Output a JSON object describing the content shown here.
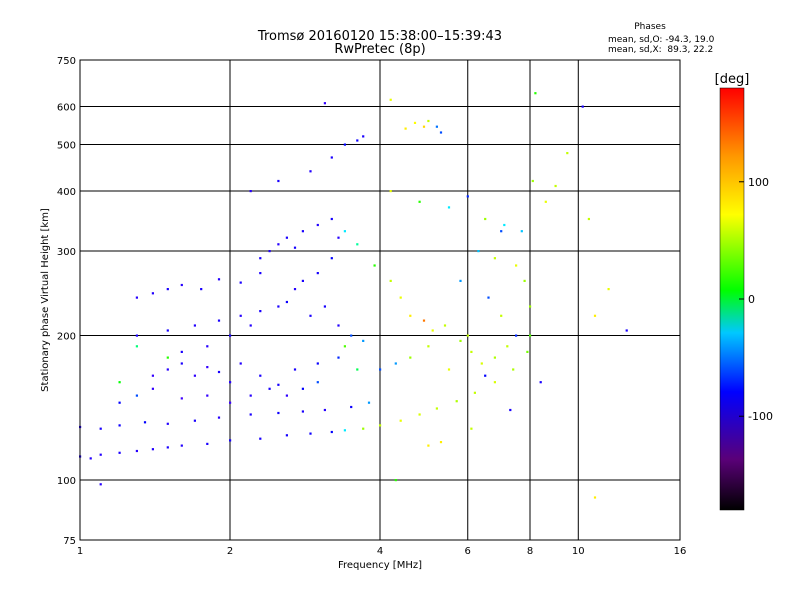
{
  "chart_data": {
    "type": "scatter",
    "title": "Tromsø 20160120 15:38:00–15:39:43",
    "subtitle": "RwPretec (8p)",
    "xlabel": "Frequency [MHz]",
    "ylabel": "Stationary phase Virtual Height [km]",
    "x_scale": "log",
    "y_scale": "log",
    "xlim": [
      1,
      16
    ],
    "ylim": [
      75,
      750
    ],
    "x_ticks": [
      1,
      2,
      4,
      6,
      8,
      10,
      16
    ],
    "y_ticks": [
      75,
      100,
      200,
      300,
      400,
      500,
      600,
      750
    ],
    "grid": true,
    "stats": {
      "heading": "Phases",
      "line_o": "mean, sd,O: -94.3, 19.0",
      "line_x": "mean, sd,X:  89.3, 22.2"
    },
    "colorbar": {
      "label": "[deg]",
      "range": [
        -180,
        180
      ],
      "ticks": [
        100,
        0,
        -100
      ],
      "colormap": "rainbow"
    },
    "series": [
      {
        "values": [
          [
            1.0,
            112,
            -105
          ],
          [
            1.05,
            111,
            -110
          ],
          [
            1.1,
            113,
            -105
          ],
          [
            1.2,
            114,
            -100
          ],
          [
            1.3,
            115,
            -110
          ],
          [
            1.4,
            116,
            -105
          ],
          [
            1.5,
            117,
            -100
          ],
          [
            1.6,
            118,
            -105
          ],
          [
            1.8,
            119,
            -100
          ],
          [
            2.0,
            121,
            -95
          ],
          [
            2.3,
            122,
            -100
          ],
          [
            2.6,
            124,
            -95
          ],
          [
            2.9,
            125,
            -90
          ],
          [
            3.2,
            126,
            -80
          ],
          [
            3.4,
            127,
            -20
          ],
          [
            3.7,
            128,
            90
          ],
          [
            4.0,
            130,
            100
          ],
          [
            4.4,
            133,
            110
          ],
          [
            4.8,
            137,
            105
          ],
          [
            5.2,
            141,
            100
          ],
          [
            5.7,
            146,
            95
          ],
          [
            6.2,
            152,
            100
          ],
          [
            6.8,
            160,
            105
          ],
          [
            7.4,
            170,
            95
          ],
          [
            7.9,
            185,
            80
          ],
          [
            8.0,
            200,
            70
          ],
          [
            1.0,
            129,
            -110
          ],
          [
            1.1,
            128,
            -100
          ],
          [
            1.2,
            130,
            -90
          ],
          [
            1.35,
            132,
            -80
          ],
          [
            1.5,
            131,
            -105
          ],
          [
            1.7,
            133,
            -100
          ],
          [
            1.9,
            135,
            -110
          ],
          [
            2.2,
            137,
            -100
          ],
          [
            2.5,
            138,
            -90
          ],
          [
            2.8,
            139,
            -100
          ],
          [
            3.1,
            140,
            -110
          ],
          [
            3.5,
            142,
            -90
          ],
          [
            3.8,
            145,
            -40
          ],
          [
            1.4,
            165,
            -120
          ],
          [
            1.5,
            170,
            -110
          ],
          [
            1.6,
            175,
            -100
          ],
          [
            1.7,
            165,
            -115
          ],
          [
            1.8,
            172,
            -120
          ],
          [
            1.9,
            168,
            -100
          ],
          [
            2.0,
            160,
            -110
          ],
          [
            2.1,
            175,
            -105
          ],
          [
            2.3,
            165,
            -100
          ],
          [
            2.5,
            158,
            -95
          ],
          [
            2.7,
            170,
            -100
          ],
          [
            3.0,
            175,
            -85
          ],
          [
            3.3,
            180,
            -70
          ],
          [
            1.3,
            240,
            -110
          ],
          [
            1.4,
            245,
            -105
          ],
          [
            1.5,
            250,
            -100
          ],
          [
            1.6,
            255,
            -110
          ],
          [
            1.75,
            250,
            -100
          ],
          [
            1.9,
            262,
            -105
          ],
          [
            2.1,
            258,
            -100
          ],
          [
            2.3,
            270,
            -100
          ],
          [
            2.3,
            290,
            -100
          ],
          [
            2.4,
            300,
            -105
          ],
          [
            2.5,
            310,
            -110
          ],
          [
            2.6,
            320,
            -100
          ],
          [
            2.7,
            305,
            -95
          ],
          [
            2.8,
            330,
            -100
          ],
          [
            3.0,
            340,
            -105
          ],
          [
            3.2,
            350,
            -95
          ],
          [
            3.3,
            320,
            -110
          ],
          [
            2.2,
            400,
            -110
          ],
          [
            2.5,
            420,
            -100
          ],
          [
            2.9,
            440,
            -105
          ],
          [
            3.2,
            470,
            -100
          ],
          [
            3.4,
            500,
            -80
          ],
          [
            3.6,
            510,
            -90
          ],
          [
            3.7,
            520,
            -100
          ],
          [
            4.5,
            540,
            120
          ],
          [
            4.7,
            555,
            115
          ],
          [
            4.9,
            545,
            125
          ],
          [
            5.0,
            560,
            100
          ],
          [
            5.3,
            530,
            -60
          ],
          [
            5.2,
            545,
            -50
          ],
          [
            3.4,
            330,
            -20
          ],
          [
            3.6,
            310,
            10
          ],
          [
            3.9,
            280,
            60
          ],
          [
            4.2,
            260,
            100
          ],
          [
            4.4,
            240,
            110
          ],
          [
            4.6,
            220,
            120
          ],
          [
            4.9,
            215,
            150
          ],
          [
            5.1,
            205,
            110
          ],
          [
            5.4,
            210,
            100
          ],
          [
            5.8,
            195,
            90
          ],
          [
            6.1,
            185,
            100
          ],
          [
            6.4,
            175,
            105
          ],
          [
            6.8,
            180,
            95
          ],
          [
            7.2,
            190,
            100
          ],
          [
            4.2,
            400,
            110
          ],
          [
            4.8,
            380,
            60
          ],
          [
            5.5,
            370,
            -20
          ],
          [
            6.0,
            390,
            -70
          ],
          [
            6.5,
            350,
            90
          ],
          [
            7.0,
            330,
            -60
          ],
          [
            7.5,
            280,
            110
          ],
          [
            7.8,
            260,
            90
          ],
          [
            6.8,
            290,
            100
          ],
          [
            2.9,
            220,
            -100
          ],
          [
            3.1,
            230,
            -95
          ],
          [
            3.3,
            210,
            -105
          ],
          [
            3.5,
            200,
            -60
          ],
          [
            3.7,
            195,
            -40
          ],
          [
            2.7,
            250,
            -110
          ],
          [
            2.5,
            230,
            -100
          ],
          [
            2.2,
            210,
            -105
          ],
          [
            2.0,
            200,
            -100
          ],
          [
            1.8,
            190,
            -110
          ],
          [
            1.6,
            185,
            -100
          ],
          [
            4.0,
            170,
            -60
          ],
          [
            4.3,
            175,
            -40
          ],
          [
            4.6,
            180,
            90
          ],
          [
            5.0,
            190,
            100
          ],
          [
            5.5,
            170,
            110
          ],
          [
            6.0,
            200,
            100
          ],
          [
            6.5,
            165,
            -80
          ],
          [
            7.0,
            220,
            100
          ],
          [
            7.5,
            200,
            -70
          ],
          [
            8.0,
            230,
            90
          ],
          [
            1.2,
            145,
            -80
          ],
          [
            1.3,
            150,
            -60
          ],
          [
            1.4,
            155,
            -120
          ],
          [
            1.6,
            148,
            -130
          ],
          [
            1.8,
            150,
            -120
          ],
          [
            2.0,
            145,
            -125
          ],
          [
            2.2,
            150,
            -110
          ],
          [
            2.4,
            155,
            -100
          ],
          [
            2.6,
            150,
            -115
          ],
          [
            2.8,
            155,
            -80
          ],
          [
            3.0,
            160,
            -60
          ],
          [
            1.3,
            200,
            -100
          ],
          [
            1.5,
            205,
            -95
          ],
          [
            1.7,
            210,
            -105
          ],
          [
            1.9,
            215,
            -100
          ],
          [
            2.1,
            220,
            -110
          ],
          [
            2.3,
            225,
            -100
          ],
          [
            2.6,
            235,
            -90
          ],
          [
            2.8,
            260,
            -100
          ],
          [
            3.0,
            270,
            -95
          ],
          [
            3.2,
            290,
            -80
          ],
          [
            1.2,
            160,
            50
          ],
          [
            1.3,
            190,
            20
          ],
          [
            1.5,
            180,
            60
          ],
          [
            3.4,
            190,
            70
          ],
          [
            3.6,
            170,
            30
          ],
          [
            5.8,
            260,
            -40
          ],
          [
            6.3,
            300,
            -30
          ],
          [
            6.6,
            240,
            -60
          ],
          [
            7.1,
            340,
            -20
          ],
          [
            7.7,
            330,
            -30
          ],
          [
            8.4,
            160,
            -100
          ],
          [
            8.6,
            380,
            110
          ],
          [
            9.0,
            410,
            100
          ],
          [
            9.5,
            480,
            100
          ],
          [
            10.5,
            350,
            100
          ],
          [
            10.8,
            220,
            120
          ],
          [
            11.5,
            250,
            110
          ],
          [
            12.5,
            205,
            -100
          ],
          [
            10.2,
            600,
            -100
          ],
          [
            10.8,
            92,
            120
          ],
          [
            3.1,
            610,
            -120
          ],
          [
            4.2,
            620,
            110
          ],
          [
            8.2,
            640,
            60
          ],
          [
            5.3,
            120,
            120
          ],
          [
            4.3,
            100,
            60
          ],
          [
            1.1,
            98,
            -110
          ],
          [
            8.1,
            420,
            90
          ],
          [
            7.3,
            140,
            -100
          ],
          [
            6.1,
            128,
            100
          ],
          [
            5.0,
            118,
            120
          ]
        ]
      }
    ]
  }
}
